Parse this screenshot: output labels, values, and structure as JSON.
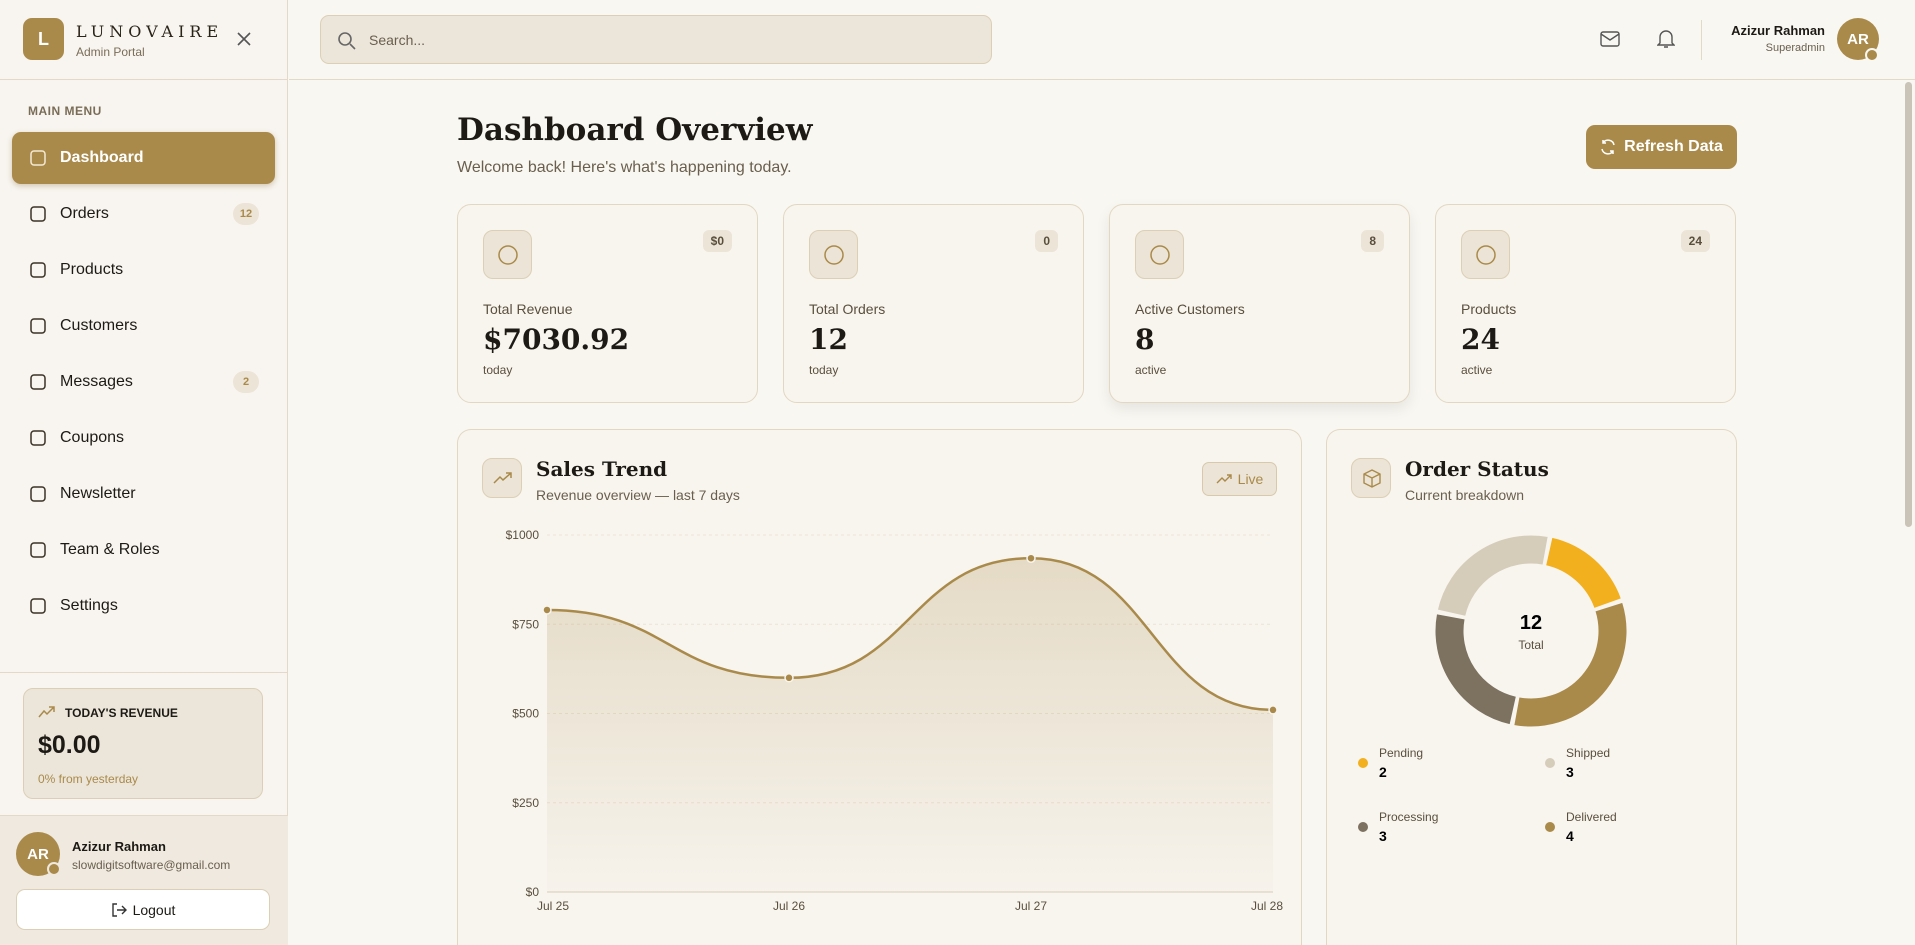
{
  "sidebar": {
    "logo_letter": "L",
    "brand": "LUNOVAIRE",
    "brand_sub": "Admin Portal",
    "menu_heading": "MAIN MENU",
    "nav": [
      {
        "label": "Dashboard"
      },
      {
        "label": "Orders",
        "badge": 12
      },
      {
        "label": "Products"
      },
      {
        "label": "Customers"
      },
      {
        "label": "Messages",
        "badge": 2
      },
      {
        "label": "Coupons"
      },
      {
        "label": "Newsletter"
      },
      {
        "label": "Team & Roles"
      },
      {
        "label": "Settings"
      }
    ],
    "revenue_card": {
      "title": "TODAY'S REVENUE",
      "value": "$0.00",
      "note": "0% from yesterday"
    },
    "user": {
      "initials": "AR",
      "name": "Azizur Rahman",
      "email": "slowdigitsoftware@gmail.com",
      "logout": "Logout"
    }
  },
  "topbar": {
    "search_placeholder": "Search...",
    "user_name": "Azizur Rahman",
    "user_role": "Superadmin",
    "initials": "AR"
  },
  "main": {
    "title": "Dashboard Overview",
    "subtitle": "Welcome back! Here's what's happening today.",
    "refresh": "Refresh Data",
    "stats": [
      {
        "label": "Total Revenue",
        "value": "$7030.92",
        "note": "today",
        "change": "$0"
      },
      {
        "label": "Total Orders",
        "value": "12",
        "note": "today",
        "change": "0"
      },
      {
        "label": "Active Customers",
        "value": "8",
        "note": "active",
        "change": "8"
      },
      {
        "label": "Products",
        "value": "24",
        "note": "active",
        "change": "24"
      }
    ]
  },
  "chart_data": [
    {
      "type": "line",
      "title": "Sales Trend",
      "subtitle": "Revenue overview — last 7 days",
      "badge": "Live",
      "categories": [
        "Jul 25",
        "Jul 26",
        "Jul 27",
        "Jul 28"
      ],
      "values": [
        790,
        600,
        935,
        510
      ],
      "color": "#a98a4a",
      "ylim": [
        0,
        1000
      ],
      "yticks": [
        {
          "value": 0,
          "label": "$0"
        },
        {
          "value": 250,
          "label": "$250"
        },
        {
          "value": 500,
          "label": "$500"
        },
        {
          "value": 750,
          "label": "$750"
        },
        {
          "value": 1000,
          "label": "$1000"
        }
      ],
      "grid": true
    },
    {
      "type": "donut",
      "title": "Order Status",
      "subtitle": "Current breakdown",
      "categories": [
        "Pending",
        "Shipped",
        "Processing",
        "Delivered"
      ],
      "values": [
        2,
        3,
        3,
        4
      ],
      "colors": [
        "#f2b01e",
        "#d6ccba",
        "#7d715f",
        "#a98a4a"
      ],
      "total": 12,
      "total_label": "Total"
    }
  ]
}
